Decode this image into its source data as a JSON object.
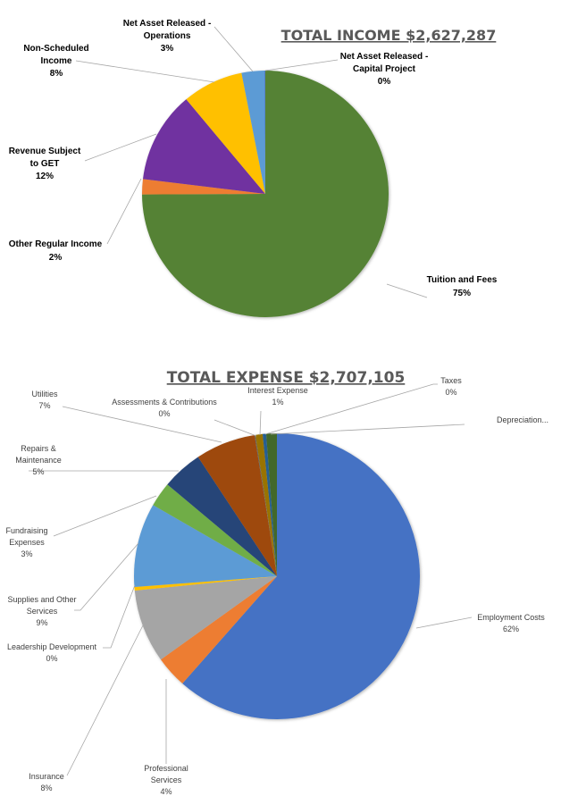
{
  "chart_data": [
    {
      "type": "pie",
      "title": "TOTAL INCOME $2,627,287",
      "categories": [
        "Tuition and Fees",
        "Other Regular Income",
        "Revenue Subject to GET",
        "Non-Scheduled Income",
        "Net Asset Released - Operations",
        "Net Asset Released - Capital Project"
      ],
      "values": [
        75,
        2,
        12,
        8,
        3,
        0.1
      ],
      "labels": [
        "75%",
        "2%",
        "12%",
        "8%",
        "3%",
        "0%"
      ],
      "colors": [
        "#548235",
        "#ed7d31",
        "#7030a0",
        "#ffc000",
        "#5b9bd5",
        "#4472c4"
      ]
    },
    {
      "type": "pie",
      "title": "TOTAL EXPENSE $2,707,105",
      "categories": [
        "Employment Costs",
        "Professional Services",
        "Insurance",
        "Leadership Development",
        "Supplies and Other Services",
        "Fundraising Expenses",
        "Repairs & Maintenance",
        "Utilities",
        "Assessments & Contributions",
        "Interest Expense",
        "Taxes",
        "Depreciation..."
      ],
      "values": [
        61.5,
        3.6,
        8.3,
        0.4,
        9.5,
        2.8,
        4.6,
        6.8,
        0.1,
        0.8,
        0.4,
        1.2
      ],
      "labels": [
        "62%",
        "4%",
        "8%",
        "0%",
        "9%",
        "3%",
        "5%",
        "7%",
        "0%",
        "1%",
        "0%",
        ""
      ],
      "colors": [
        "#4472c4",
        "#ed7d31",
        "#a5a5a5",
        "#ffc000",
        "#5b9bd5",
        "#70ad47",
        "#264478",
        "#9e480e",
        "#636363",
        "#997300",
        "#255e91",
        "#43682b"
      ]
    }
  ]
}
